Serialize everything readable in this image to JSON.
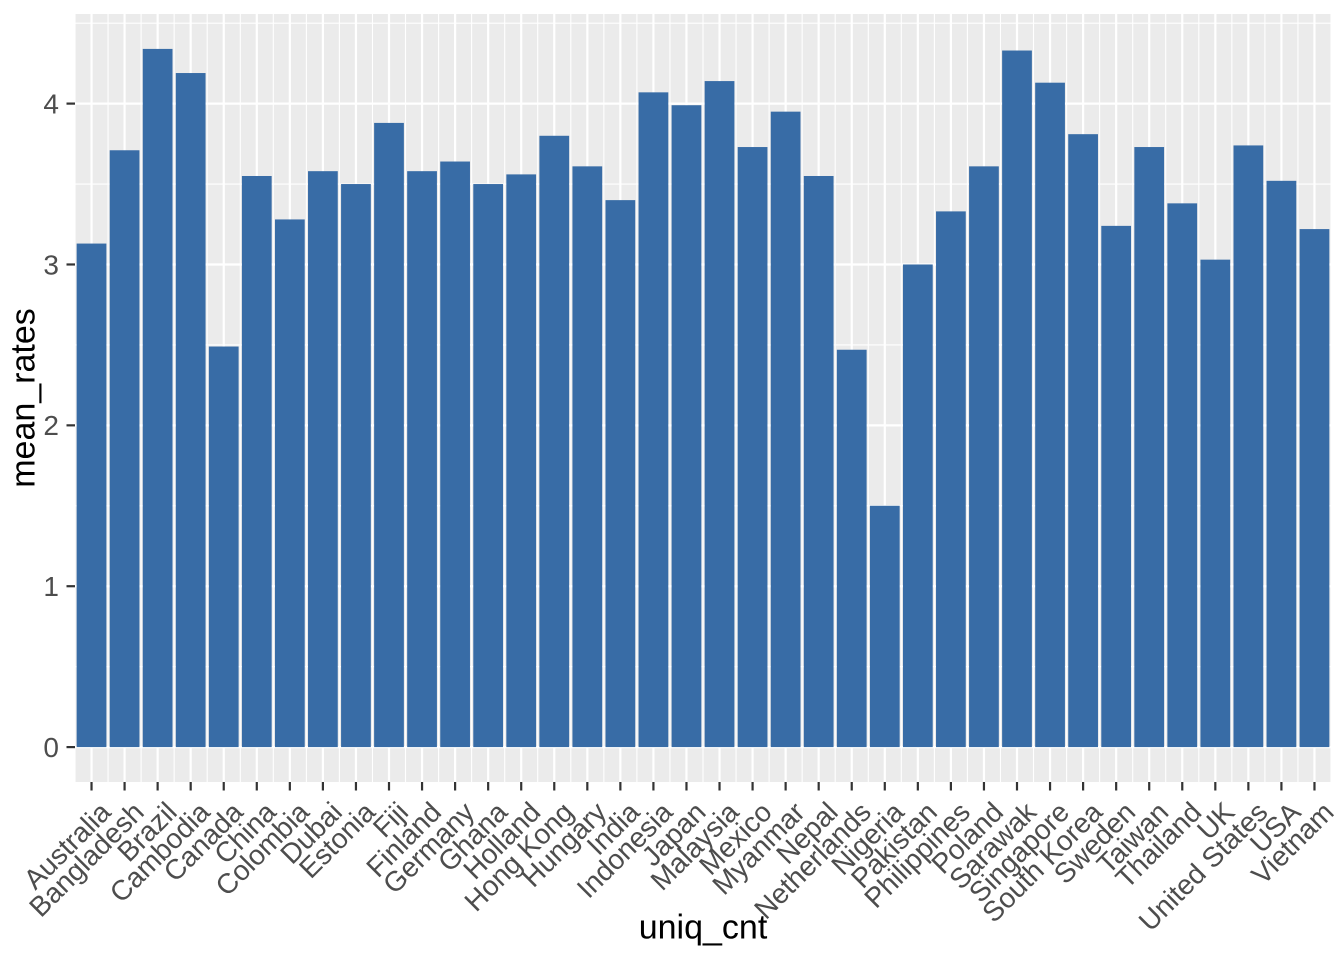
{
  "chart_data": {
    "type": "bar",
    "title": "",
    "xlabel": "uniq_cnt",
    "ylabel": "mean_rates",
    "categories": [
      "Australia",
      "Bangladesh",
      "Brazil",
      "Cambodia",
      "Canada",
      "China",
      "Colombia",
      "Dubai",
      "Estonia",
      "Fiji",
      "Finland",
      "Germany",
      "Ghana",
      "Holland",
      "Hong Kong",
      "Hungary",
      "India",
      "Indonesia",
      "Japan",
      "Malaysia",
      "Mexico",
      "Myanmar",
      "Nepal",
      "Netherlands",
      "Nigeria",
      "Pakistan",
      "Philippines",
      "Poland",
      "Sarawak",
      "Singapore",
      "South Korea",
      "Sweden",
      "Taiwan",
      "Thailand",
      "UK",
      "United States",
      "USA",
      "Vietnam"
    ],
    "values": [
      3.13,
      3.71,
      4.34,
      4.19,
      2.49,
      3.55,
      3.28,
      3.58,
      3.5,
      3.88,
      3.58,
      3.64,
      3.5,
      3.56,
      3.8,
      3.61,
      3.4,
      4.07,
      3.99,
      4.14,
      3.73,
      3.95,
      3.55,
      2.47,
      1.5,
      3.0,
      3.33,
      3.61,
      4.33,
      4.13,
      3.81,
      3.24,
      3.73,
      3.38,
      3.03,
      3.74,
      3.52,
      3.22
    ],
    "yticks": [
      0,
      1,
      2,
      3,
      4
    ],
    "ylim": [
      0,
      4.34
    ],
    "grid": "on",
    "legend": "none",
    "bar_width_fraction": 0.9,
    "colors": {
      "bar_fill": "#386CA6",
      "panel_bg": "#EBEBEB",
      "grid_major": "#FFFFFF",
      "grid_minor": "#FFFFFF",
      "tick_mark": "#333333",
      "tick_label": "#4D4D4D",
      "axis_title": "#000000",
      "page_bg": "#FFFFFF"
    }
  }
}
